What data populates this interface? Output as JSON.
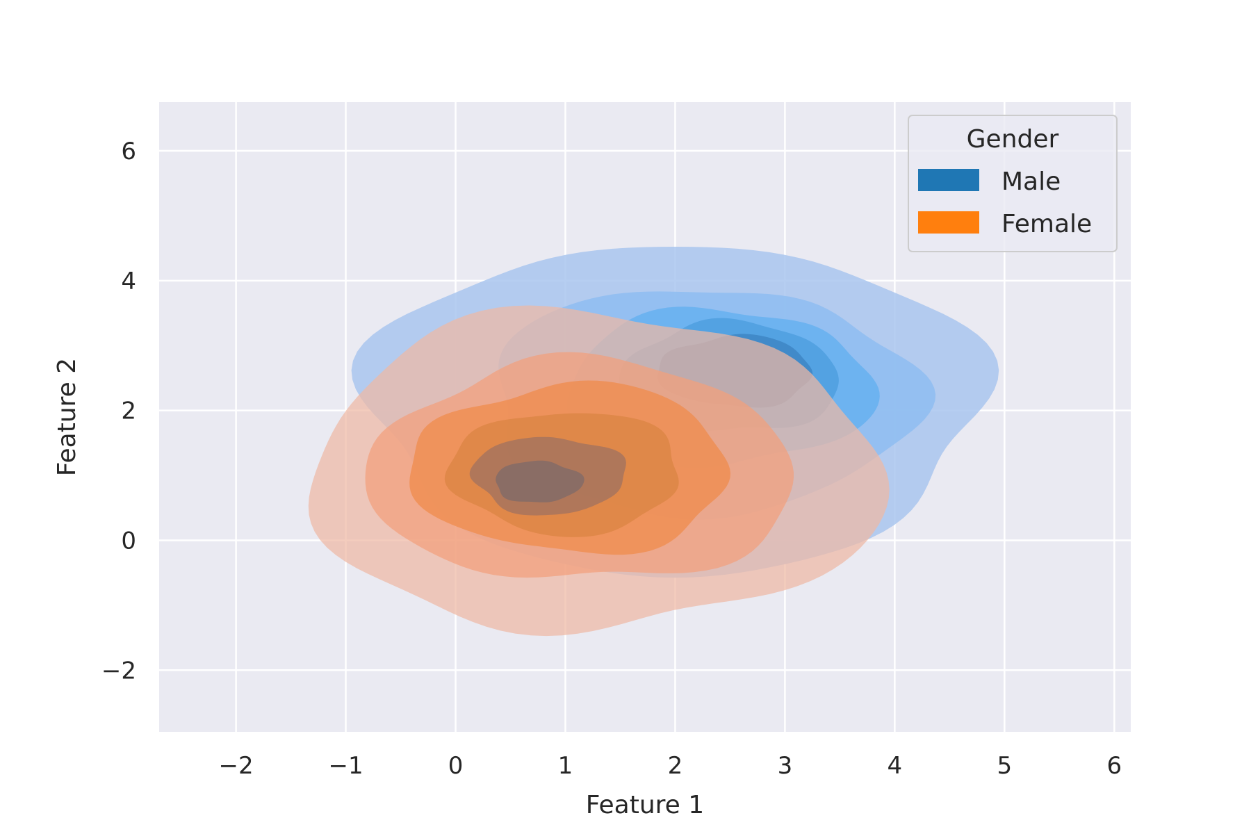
{
  "chart_data": {
    "type": "kde",
    "xlabel": "Feature 1",
    "ylabel": "Feature 2",
    "xlim": [
      -2.7,
      6.15
    ],
    "ylim": [
      -2.95,
      6.75
    ],
    "x_ticks": [
      -2,
      -1,
      0,
      1,
      2,
      3,
      4,
      5,
      6
    ],
    "y_ticks": [
      -2,
      0,
      2,
      4,
      6
    ],
    "x_tick_labels": [
      "−2",
      "−1",
      "0",
      "1",
      "2",
      "3",
      "4",
      "5",
      "6"
    ],
    "y_tick_labels": [
      "−2",
      "0",
      "2",
      "4",
      "6"
    ],
    "grid": true,
    "legend": {
      "title": "Gender",
      "placement": "upper-right",
      "entries": [
        {
          "label": "Male",
          "color": "#1f77b4"
        },
        {
          "label": "Female",
          "color": "#ff7f0e"
        }
      ]
    },
    "series": [
      {
        "name": "Male",
        "color": "#1f77b4",
        "levels": [
          {
            "cx": 2.0,
            "cy": 2.05,
            "rx": 2.8,
            "ry": 2.55,
            "fill": "#a9c6ee"
          },
          {
            "cx": 2.25,
            "cy": 2.15,
            "rx": 1.95,
            "ry": 1.75,
            "fill": "#8ebdf1"
          },
          {
            "cx": 2.4,
            "cy": 2.35,
            "rx": 1.4,
            "ry": 1.2,
            "fill": "#66b0f0"
          },
          {
            "cx": 2.5,
            "cy": 2.5,
            "rx": 1.0,
            "ry": 0.85,
            "fill": "#4f9fdf"
          },
          {
            "cx": 2.55,
            "cy": 2.6,
            "rx": 0.7,
            "ry": 0.55,
            "fill": "#3e86c4"
          }
        ]
      },
      {
        "name": "Female",
        "color": "#ff7f0e",
        "levels": [
          {
            "cx": 1.25,
            "cy": 1.05,
            "rx": 2.6,
            "ry": 2.45,
            "fill": "#efb9a4"
          },
          {
            "cx": 1.15,
            "cy": 1.05,
            "rx": 1.95,
            "ry": 1.7,
            "fill": "#f2a07c"
          },
          {
            "cx": 1.05,
            "cy": 1.1,
            "rx": 1.45,
            "ry": 1.3,
            "fill": "#f08a4a"
          },
          {
            "cx": 1.0,
            "cy": 1.05,
            "rx": 1.05,
            "ry": 0.95,
            "fill": "#d98442"
          },
          {
            "cx": 0.85,
            "cy": 1.0,
            "rx": 0.7,
            "ry": 0.6,
            "fill": "#9c7061"
          },
          {
            "cx": 0.75,
            "cy": 0.9,
            "rx": 0.4,
            "ry": 0.32,
            "fill": "#7b6a6a"
          }
        ]
      }
    ]
  }
}
